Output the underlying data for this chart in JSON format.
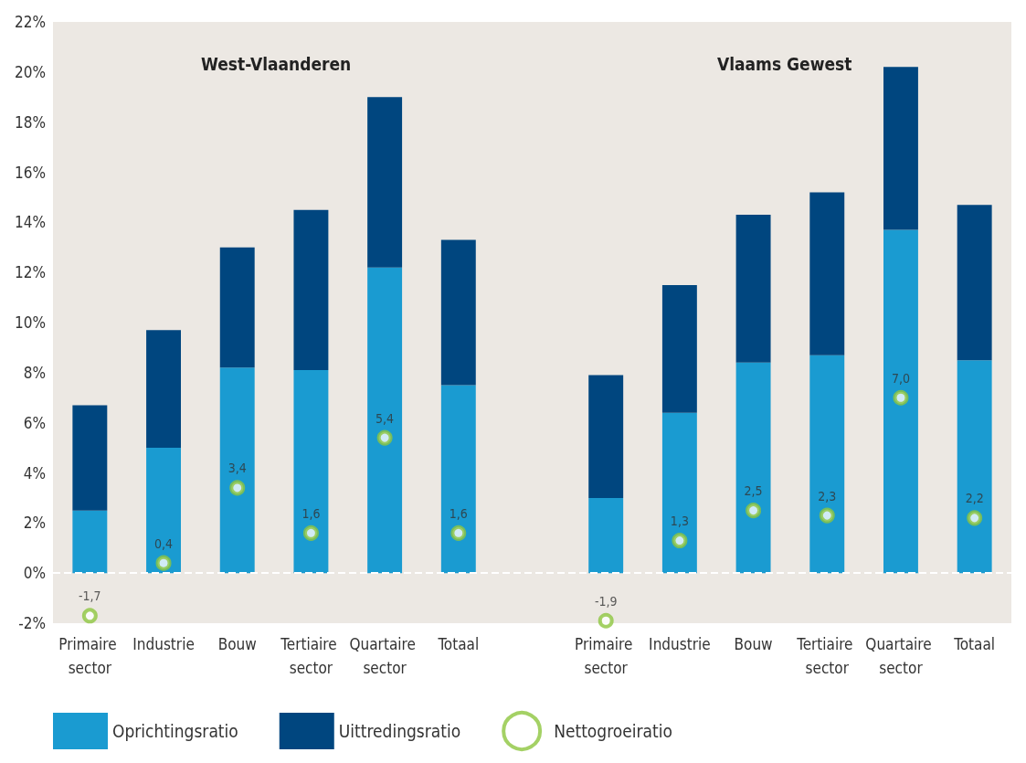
{
  "chart_data": {
    "type": "bar",
    "stacked": true,
    "categories": [
      "Primaire sector",
      "Industrie",
      "Bouw",
      "Tertiaire sector",
      "Quartaire sector",
      "Totaal",
      null,
      "Primaire sector",
      "Industrie",
      "Bouw",
      "Tertiaire sector",
      "Quartaire sector",
      "Totaal"
    ],
    "series": [
      {
        "name": "Oprichtingsratio",
        "color": "#1a9bd1",
        "values": [
          2.5,
          5.0,
          8.2,
          8.1,
          12.2,
          7.5,
          null,
          3.0,
          6.4,
          8.4,
          8.7,
          13.7,
          8.5
        ]
      },
      {
        "name": "Uittredingsratio",
        "color": "#00467f",
        "values": [
          4.2,
          4.7,
          4.8,
          6.4,
          6.8,
          5.8,
          null,
          4.9,
          5.1,
          5.9,
          6.5,
          6.5,
          6.2
        ]
      },
      {
        "name": "Nettogroeiratio",
        "type": "scatter",
        "marker": "circle",
        "color": "#8dc63f",
        "values": [
          -1.7,
          0.4,
          3.4,
          1.6,
          5.4,
          1.6,
          null,
          -1.9,
          1.3,
          2.5,
          2.3,
          7.0,
          2.2
        ],
        "value_labels": [
          "-1,7",
          "0,4",
          "3,4",
          "1,6",
          "5,4",
          "1,6",
          null,
          "-1,9",
          "1,3",
          "2,5",
          "2,3",
          "7,0",
          "2,2"
        ]
      }
    ],
    "annotations": [
      "West-Vlaanderen",
      "Vlaams Gewest"
    ],
    "ylim": [
      -2,
      22
    ],
    "yticks": [
      {
        "value": -2,
        "label": "-2%"
      },
      {
        "value": 0,
        "label": "0%"
      },
      {
        "value": 2,
        "label": "2%"
      },
      {
        "value": 4,
        "label": "4%"
      },
      {
        "value": 6,
        "label": "6%"
      },
      {
        "value": 8,
        "label": "8%"
      },
      {
        "value": 10,
        "label": "10%"
      },
      {
        "value": 12,
        "label": "12%"
      },
      {
        "value": 14,
        "label": "14%"
      },
      {
        "value": 16,
        "label": "16%"
      },
      {
        "value": 18,
        "label": "18%"
      },
      {
        "value": 20,
        "label": "20%"
      },
      {
        "value": 22,
        "label": "22%"
      }
    ],
    "ref_lines": [
      {
        "axis": "y",
        "value": 0,
        "color": "#ffffff",
        "line_style": "dashed"
      }
    ],
    "grid": false,
    "legend": "bottom left"
  }
}
